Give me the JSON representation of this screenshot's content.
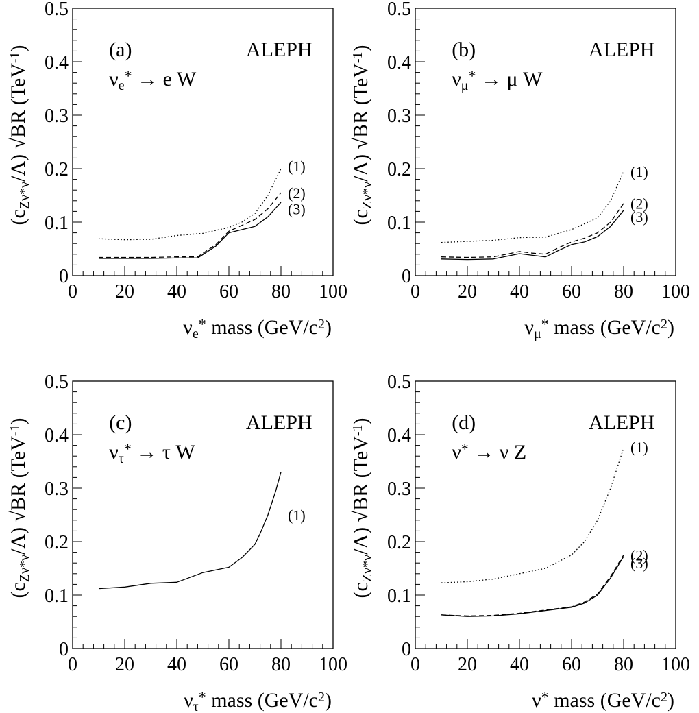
{
  "figure": {
    "panels": [
      {
        "id": "a",
        "tag": "(a)",
        "experiment": "ALEPH",
        "process": {
          "main": "ν",
          "sub": "e",
          "sup": "*",
          "rest": " → e W"
        },
        "xlabel": {
          "main": "ν",
          "sub": "e",
          "sup": "*",
          "text": " mass (GeV/c",
          "exp": "2",
          "close": ")"
        },
        "ylabel": {
          "open": "(c",
          "sub": "Zν*ν",
          "mid": "/Λ) √BR (TeV",
          "exp": "-1",
          "close": ")"
        }
      },
      {
        "id": "b",
        "tag": "(b)",
        "experiment": "ALEPH",
        "process": {
          "main": "ν",
          "sub": "μ",
          "sup": "*",
          "rest": " → μ W"
        },
        "xlabel": {
          "main": "ν",
          "sub": "μ",
          "sup": "*",
          "text": " mass (GeV/c",
          "exp": "2",
          "close": ")"
        },
        "ylabel": {
          "open": "(c",
          "sub": "Zν*ν",
          "mid": "/Λ) √BR (TeV",
          "exp": "-1",
          "close": ")"
        }
      },
      {
        "id": "c",
        "tag": "(c)",
        "experiment": "ALEPH",
        "process": {
          "main": "ν",
          "sub": "τ",
          "sup": "*",
          "rest": " → τ W"
        },
        "xlabel": {
          "main": "ν",
          "sub": "τ",
          "sup": "*",
          "text": " mass (GeV/c",
          "exp": "2",
          "close": ")"
        },
        "ylabel": {
          "open": "(c",
          "sub": "Zν*ν",
          "mid": "/Λ) √BR (TeV",
          "exp": "-1",
          "close": ")"
        }
      },
      {
        "id": "d",
        "tag": "(d)",
        "experiment": "ALEPH",
        "process": {
          "main": "ν",
          "sub": "",
          "sup": "*",
          "rest": " → ν Z"
        },
        "xlabel": {
          "main": "ν",
          "sub": "",
          "sup": "*",
          "text": " mass (GeV/c",
          "exp": "2",
          "close": ")"
        },
        "ylabel": {
          "open": "(c",
          "sub": "Zν*ν",
          "mid": "/Λ) √BR (TeV",
          "exp": "-1",
          "close": ")"
        }
      }
    ]
  },
  "chart_data": [
    {
      "type": "line",
      "panel": "a",
      "xlim": [
        0,
        100
      ],
      "ylim": [
        0,
        0.5
      ],
      "x_ticks": [
        "0",
        "20",
        "40",
        "60",
        "80",
        "100"
      ],
      "y_ticks": [
        "0",
        "0.1",
        "0.2",
        "0.3",
        "0.4",
        "0.5"
      ],
      "series": [
        {
          "name": "(1)",
          "style": "dotted",
          "x": [
            10,
            20,
            30,
            40,
            50,
            60,
            65,
            70,
            75,
            80
          ],
          "y": [
            0.069,
            0.067,
            0.068,
            0.075,
            0.079,
            0.09,
            0.1,
            0.116,
            0.15,
            0.2
          ]
        },
        {
          "name": "(2)",
          "style": "dashed",
          "x": [
            10,
            20,
            30,
            40,
            48,
            55,
            60,
            65,
            70,
            75,
            80
          ],
          "y": [
            0.034,
            0.034,
            0.034,
            0.035,
            0.035,
            0.058,
            0.083,
            0.094,
            0.105,
            0.125,
            0.155
          ]
        },
        {
          "name": "(3)",
          "style": "solid",
          "x": [
            10,
            20,
            30,
            40,
            48,
            55,
            60,
            65,
            70,
            75,
            80
          ],
          "y": [
            0.032,
            0.032,
            0.032,
            0.033,
            0.033,
            0.055,
            0.08,
            0.086,
            0.092,
            0.11,
            0.137
          ]
        }
      ]
    },
    {
      "type": "line",
      "panel": "b",
      "xlim": [
        0,
        100
      ],
      "ylim": [
        0,
        0.5
      ],
      "x_ticks": [
        "0",
        "20",
        "40",
        "60",
        "80",
        "100"
      ],
      "y_ticks": [
        "0",
        "0.1",
        "0.2",
        "0.3",
        "0.4",
        "0.5"
      ],
      "series": [
        {
          "name": "(1)",
          "style": "dotted",
          "x": [
            10,
            20,
            30,
            40,
            50,
            60,
            70,
            75,
            80
          ],
          "y": [
            0.062,
            0.064,
            0.066,
            0.071,
            0.072,
            0.086,
            0.108,
            0.14,
            0.195
          ]
        },
        {
          "name": "(2)",
          "style": "dashed",
          "x": [
            10,
            20,
            30,
            40,
            45,
            50,
            55,
            60,
            65,
            70,
            75,
            80
          ],
          "y": [
            0.035,
            0.034,
            0.035,
            0.045,
            0.042,
            0.04,
            0.052,
            0.063,
            0.07,
            0.08,
            0.1,
            0.135
          ]
        },
        {
          "name": "(3)",
          "style": "solid",
          "x": [
            10,
            20,
            30,
            40,
            45,
            50,
            55,
            60,
            65,
            70,
            75,
            80
          ],
          "y": [
            0.031,
            0.03,
            0.031,
            0.041,
            0.038,
            0.035,
            0.047,
            0.058,
            0.063,
            0.073,
            0.092,
            0.122
          ]
        }
      ]
    },
    {
      "type": "line",
      "panel": "c",
      "xlim": [
        0,
        100
      ],
      "ylim": [
        0,
        0.5
      ],
      "x_ticks": [
        "0",
        "20",
        "40",
        "60",
        "80",
        "100"
      ],
      "y_ticks": [
        "0",
        "0.1",
        "0.2",
        "0.3",
        "0.4",
        "0.5"
      ],
      "series": [
        {
          "name": "(1)",
          "style": "solid",
          "x": [
            10,
            20,
            30,
            40,
            50,
            60,
            65,
            70,
            72,
            75,
            78,
            80
          ],
          "y": [
            0.112,
            0.115,
            0.122,
            0.124,
            0.142,
            0.152,
            0.17,
            0.195,
            0.215,
            0.25,
            0.295,
            0.33
          ]
        }
      ]
    },
    {
      "type": "line",
      "panel": "d",
      "xlim": [
        0,
        100
      ],
      "ylim": [
        0,
        0.5
      ],
      "x_ticks": [
        "0",
        "20",
        "40",
        "60",
        "80",
        "100"
      ],
      "y_ticks": [
        "0",
        "0.1",
        "0.2",
        "0.3",
        "0.4",
        "0.5"
      ],
      "series": [
        {
          "name": "(1)",
          "style": "dotted",
          "x": [
            10,
            20,
            30,
            40,
            50,
            60,
            65,
            70,
            75,
            80
          ],
          "y": [
            0.123,
            0.125,
            0.13,
            0.14,
            0.15,
            0.175,
            0.2,
            0.24,
            0.3,
            0.375
          ]
        },
        {
          "name": "(2)",
          "style": "dashed",
          "x": [
            10,
            20,
            30,
            40,
            50,
            60,
            65,
            70,
            75,
            80
          ],
          "y": [
            0.063,
            0.061,
            0.062,
            0.066,
            0.072,
            0.078,
            0.087,
            0.102,
            0.135,
            0.175
          ]
        },
        {
          "name": "(3)",
          "style": "solid",
          "x": [
            10,
            20,
            30,
            40,
            50,
            60,
            65,
            70,
            75,
            80
          ],
          "y": [
            0.063,
            0.06,
            0.061,
            0.065,
            0.071,
            0.077,
            0.085,
            0.1,
            0.132,
            0.172
          ]
        }
      ]
    }
  ]
}
